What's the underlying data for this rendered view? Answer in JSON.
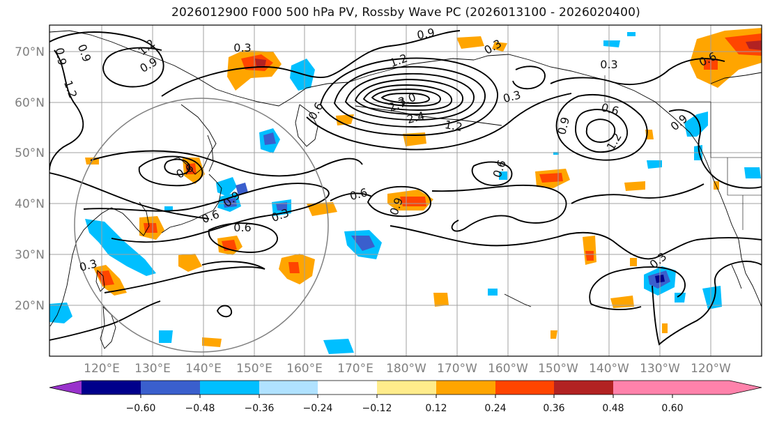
{
  "title": "2026012900 F000 500 hPa PV, Rossby Wave PC (2026013100 - 2026020400)",
  "map": {
    "lat_ticks": [
      "70°N",
      "60°N",
      "50°N",
      "40°N",
      "30°N",
      "20°N"
    ],
    "lon_ticks": [
      "120°E",
      "130°E",
      "140°E",
      "150°E",
      "160°E",
      "170°E",
      "180°W",
      "170°W",
      "160°W",
      "150°W",
      "140°W",
      "130°W",
      "120°W"
    ],
    "contour_labels": [
      "0.9",
      "0.9",
      "1.2",
      "0.3",
      "0.9",
      "1.2",
      "0.6",
      "0.3",
      "0.9",
      "1.2",
      "3.0",
      "2.7",
      "2.4",
      "1.2",
      "0.6",
      "0.3",
      "0.3",
      "0.6",
      "0.9",
      "0.6",
      "1.2",
      "0.9",
      "0.6",
      "0.6",
      "0.9",
      "0.6",
      "0.3",
      "0.6",
      "0.9",
      "0.3",
      "0.3"
    ],
    "colors": {
      "grid": "#a0a0a0",
      "coast": "#000000",
      "contour": "#000000",
      "circle": "#808080"
    }
  },
  "colorbar": {
    "tick_labels": [
      "−0.60",
      "−0.48",
      "−0.36",
      "−0.24",
      "−0.12",
      "0.12",
      "0.24",
      "0.36",
      "0.48",
      "0.60"
    ],
    "colors": [
      "#9932cc",
      "#00008b",
      "#3a5fcd",
      "#00bfff",
      "#b0e2ff",
      "#ffffff",
      "#ffec8b",
      "#ffa500",
      "#ff4500",
      "#b22222",
      "#ff82ab"
    ]
  }
}
